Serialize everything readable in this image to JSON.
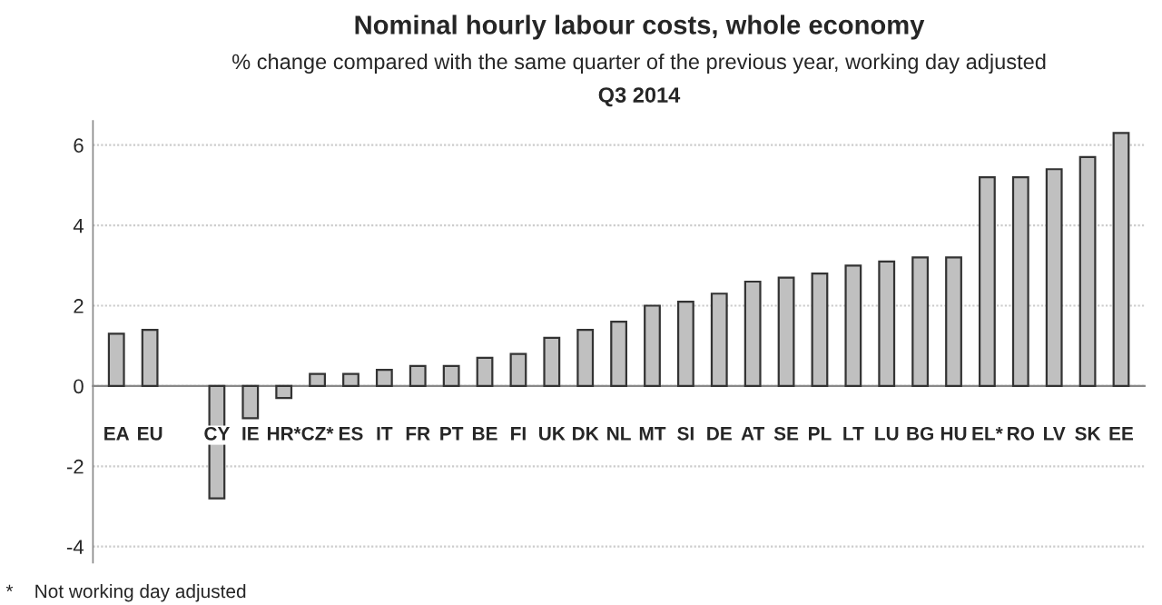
{
  "chart_data": {
    "type": "bar",
    "title": "Nominal hourly labour costs, whole economy",
    "subtitle": "% change compared with the same quarter of the previous year, working day adjusted\nQ3 2014",
    "categories": [
      "EA",
      "EU",
      null,
      "CY",
      "IE",
      "HR*",
      "CZ*",
      "ES",
      "IT",
      "FR",
      "PT",
      "BE",
      "FI",
      "UK",
      "DK",
      "NL",
      "MT",
      "SI",
      "DE",
      "AT",
      "SE",
      "PL",
      "LT",
      "LU",
      "BG",
      "HU",
      "EL*",
      "RO",
      "LV",
      "SK",
      "EE"
    ],
    "values": [
      1.3,
      1.4,
      null,
      -2.8,
      -0.8,
      -0.3,
      0.3,
      0.3,
      0.4,
      0.5,
      0.5,
      0.7,
      0.8,
      1.2,
      1.4,
      1.6,
      2.0,
      2.1,
      2.3,
      2.6,
      2.7,
      2.8,
      3.0,
      3.1,
      3.2,
      3.2,
      5.2,
      5.2,
      5.4,
      5.7,
      6.3
    ],
    "color": "#c0c0c0",
    "ylim": [
      -4.4,
      6.6
    ],
    "yticks": [
      -4,
      -2,
      0,
      2,
      4,
      6
    ],
    "grid": "y",
    "annotations": [
      "*    Not working day adjusted"
    ]
  }
}
